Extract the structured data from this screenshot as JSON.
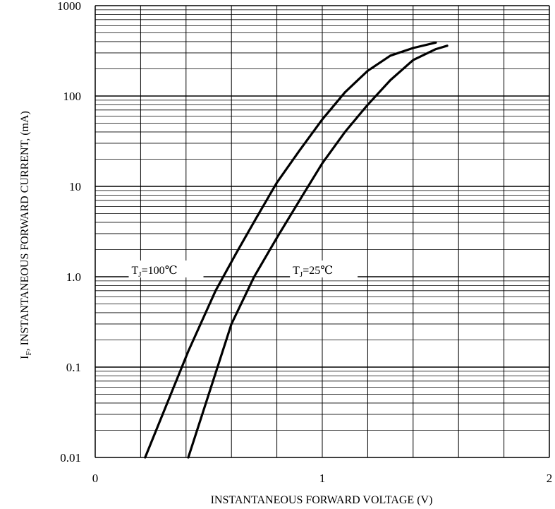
{
  "chart_data": {
    "type": "line",
    "title": "",
    "xlabel": "INSTANTANEOUS FORWARD VOLTAGE (V)",
    "ylabel_parts": {
      "symbol": "I",
      "subscript": "F",
      "text": ", INSTANTANEOUS FORWARD CURRENT, (mA)"
    },
    "xlim": [
      0,
      2
    ],
    "ylim": [
      0.01,
      1000
    ],
    "yscale": "log",
    "grid": true,
    "x_ticks": [
      {
        "value": 0,
        "label": "0"
      },
      {
        "value": 1,
        "label": "1"
      },
      {
        "value": 2,
        "label": "2"
      }
    ],
    "y_ticks": [
      {
        "value": 0.01,
        "label": "0.01"
      },
      {
        "value": 0.1,
        "label": "0.1"
      },
      {
        "value": 1,
        "label": "1.0"
      },
      {
        "value": 10,
        "label": "10"
      },
      {
        "value": 100,
        "label": "100"
      },
      {
        "value": 1000,
        "label": "1000"
      }
    ],
    "series": [
      {
        "label_parts": {
          "symbol": "T",
          "subscript": "J",
          "text": "=100℃"
        },
        "points": [
          [
            0.22,
            0.01
          ],
          [
            0.41,
            0.15
          ],
          [
            0.53,
            0.7
          ],
          [
            0.62,
            1.8
          ],
          [
            0.71,
            4.5
          ],
          [
            0.8,
            11
          ],
          [
            0.9,
            25
          ],
          [
            1.0,
            55
          ],
          [
            1.1,
            110
          ],
          [
            1.2,
            190
          ],
          [
            1.3,
            280
          ],
          [
            1.4,
            340
          ],
          [
            1.5,
            390
          ]
        ]
      },
      {
        "label_parts": {
          "symbol": "T",
          "subscript": "J",
          "text": "=25℃"
        },
        "points": [
          [
            0.41,
            0.01
          ],
          [
            0.5,
            0.05
          ],
          [
            0.6,
            0.3
          ],
          [
            0.7,
            1.0
          ],
          [
            0.8,
            2.7
          ],
          [
            0.9,
            7
          ],
          [
            1.0,
            18
          ],
          [
            1.1,
            40
          ],
          [
            1.2,
            80
          ],
          [
            1.3,
            150
          ],
          [
            1.4,
            250
          ],
          [
            1.5,
            330
          ],
          [
            1.55,
            360
          ]
        ]
      }
    ],
    "annotation_positions": [
      {
        "series_index": 0,
        "x": 0.16,
        "y": 1.0
      },
      {
        "series_index": 1,
        "x": 0.87,
        "y": 1.0
      }
    ]
  }
}
